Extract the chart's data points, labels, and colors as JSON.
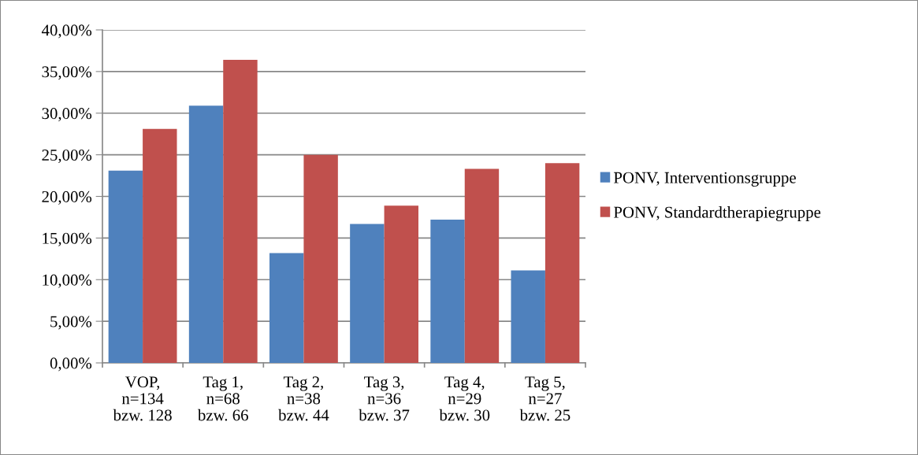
{
  "chart_data": {
    "type": "bar",
    "categories": [
      "VOP,\nn=134\nbzw. 128",
      "Tag 1,\nn=68\nbzw. 66",
      "Tag 2,\nn=38\nbzw. 44",
      "Tag 3,\nn=36\nbzw. 37",
      "Tag 4,\nn=29\nbzw. 30",
      "Tag 5,\nn=27\nbzw. 25"
    ],
    "series": [
      {
        "name": "PONV, Interventionsgruppe",
        "color": "#4f81bd",
        "values": [
          23.1,
          30.9,
          13.2,
          16.7,
          17.2,
          11.1
        ]
      },
      {
        "name": "PONV, Standardtherapiegruppe",
        "color": "#c0504d",
        "values": [
          28.1,
          36.4,
          25.0,
          18.9,
          23.3,
          24.0
        ]
      }
    ],
    "ylim": [
      0,
      40
    ],
    "yticks": [
      {
        "value": 0,
        "label": "0,00%"
      },
      {
        "value": 5,
        "label": "5,00%"
      },
      {
        "value": 10,
        "label": "10,00%"
      },
      {
        "value": 15,
        "label": "15,00%"
      },
      {
        "value": 20,
        "label": "20,00%"
      },
      {
        "value": 25,
        "label": "25,00%"
      },
      {
        "value": 30,
        "label": "30,00%"
      },
      {
        "value": 35,
        "label": "35,00%"
      },
      {
        "value": 40,
        "label": "40,00%"
      }
    ],
    "grid": "y",
    "legend": "right"
  }
}
